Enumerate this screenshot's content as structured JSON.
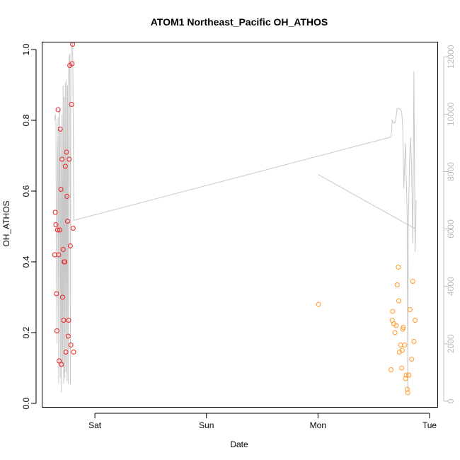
{
  "chart_data": {
    "type": "scatter",
    "title": "ATOM1 Northeast_Pacific OH_ATHOS",
    "xlabel": "Date",
    "ylabel": "OH_ATHOS",
    "x_axis": {
      "type": "time",
      "unit": "days",
      "range": [
        -0.47,
        3.07
      ],
      "ticks": [
        {
          "value": 0,
          "label": "Sat"
        },
        {
          "value": 1,
          "label": "Sun"
        },
        {
          "value": 2,
          "label": "Mon"
        },
        {
          "value": 3,
          "label": "Tue"
        }
      ]
    },
    "y_axis": {
      "range": [
        -0.01,
        1.02
      ],
      "ticks": [
        0.0,
        0.2,
        0.4,
        0.6,
        0.8,
        1.0
      ],
      "tick_labels": [
        "0.0",
        "0.2",
        "0.4",
        "0.6",
        "0.8",
        "1.0"
      ]
    },
    "y2_axis": {
      "range": [
        -200,
        12500
      ],
      "ticks": [
        0,
        2000,
        4000,
        6000,
        8000,
        10000,
        12000
      ],
      "tick_labels": [
        "0",
        "2000",
        "4000",
        "6000",
        "8000",
        "10000",
        "12000"
      ],
      "color": "#bdbdbd"
    },
    "grid": false,
    "colors": {
      "series_1": "#ee2222",
      "series_2": "#ff9922",
      "altitude": "#c8c8c8"
    },
    "series": [
      {
        "color": "#ee2222",
        "marker": "open-circle",
        "points": [
          [
            -0.36,
            0.42
          ],
          [
            -0.355,
            0.54
          ],
          [
            -0.35,
            0.505
          ],
          [
            -0.345,
            0.31
          ],
          [
            -0.34,
            0.205
          ],
          [
            -0.335,
            0.49
          ],
          [
            -0.33,
            0.83
          ],
          [
            -0.325,
            0.42
          ],
          [
            -0.32,
            0.12
          ],
          [
            -0.315,
            0.49
          ],
          [
            -0.31,
            0.775
          ],
          [
            -0.305,
            0.605
          ],
          [
            -0.3,
            0.11
          ],
          [
            -0.295,
            0.69
          ],
          [
            -0.29,
            0.3
          ],
          [
            -0.285,
            0.435
          ],
          [
            -0.28,
            0.235
          ],
          [
            -0.275,
            0.4
          ],
          [
            -0.27,
            0.4
          ],
          [
            -0.265,
            0.67
          ],
          [
            -0.26,
            0.145
          ],
          [
            -0.255,
            0.71
          ],
          [
            -0.25,
            0.585
          ],
          [
            -0.245,
            0.515
          ],
          [
            -0.24,
            0.19
          ],
          [
            -0.235,
            0.235
          ],
          [
            -0.23,
            0.69
          ],
          [
            -0.225,
            0.955
          ],
          [
            -0.22,
            0.445
          ],
          [
            -0.215,
            0.165
          ],
          [
            -0.21,
            0.845
          ],
          [
            -0.205,
            0.96
          ],
          [
            -0.2,
            1.015
          ],
          [
            -0.195,
            0.495
          ],
          [
            -0.19,
            0.145
          ]
        ]
      },
      {
        "color": "#ff9922",
        "marker": "open-circle",
        "points": [
          [
            2.005,
            0.28
          ],
          [
            2.655,
            0.095
          ],
          [
            2.665,
            0.235
          ],
          [
            2.67,
            0.26
          ],
          [
            2.68,
            0.225
          ],
          [
            2.69,
            0.2
          ],
          [
            2.7,
            0.22
          ],
          [
            2.71,
            0.335
          ],
          [
            2.72,
            0.385
          ],
          [
            2.725,
            0.29
          ],
          [
            2.73,
            0.145
          ],
          [
            2.74,
            0.165
          ],
          [
            2.75,
            0.1
          ],
          [
            2.755,
            0.15
          ],
          [
            2.76,
            0.21
          ],
          [
            2.765,
            0.215
          ],
          [
            2.775,
            0.165
          ],
          [
            2.785,
            0.07
          ],
          [
            2.79,
            0.08
          ],
          [
            2.8,
            0.04
          ],
          [
            2.805,
            0.03
          ],
          [
            2.815,
            0.08
          ],
          [
            2.825,
            0.265
          ],
          [
            2.84,
            0.125
          ],
          [
            2.85,
            0.345
          ],
          [
            2.86,
            0.175
          ],
          [
            2.87,
            0.235
          ]
        ]
      }
    ],
    "altitude_trace": {
      "axis": "y2",
      "color": "#c8c8c8",
      "points": [
        [
          -0.36,
          9800
        ],
        [
          -0.355,
          10000
        ],
        [
          -0.35,
          9850
        ],
        [
          -0.34,
          2000
        ],
        [
          -0.335,
          8000
        ],
        [
          -0.33,
          9900
        ],
        [
          -0.325,
          600
        ],
        [
          -0.32,
          8500
        ],
        [
          -0.315,
          10200
        ],
        [
          -0.31,
          800
        ],
        [
          -0.305,
          9500
        ],
        [
          -0.3,
          300
        ],
        [
          -0.295,
          10000
        ],
        [
          -0.29,
          1200
        ],
        [
          -0.285,
          11000
        ],
        [
          -0.28,
          600
        ],
        [
          -0.275,
          10600
        ],
        [
          -0.27,
          800
        ],
        [
          -0.265,
          11100
        ],
        [
          -0.26,
          1000
        ],
        [
          -0.255,
          11200
        ],
        [
          -0.25,
          700
        ],
        [
          -0.245,
          11000
        ],
        [
          -0.24,
          600
        ],
        [
          -0.235,
          11500
        ],
        [
          -0.23,
          12000
        ],
        [
          -0.225,
          12100
        ],
        [
          -0.22,
          600
        ],
        [
          -0.215,
          11800
        ],
        [
          -0.21,
          12300
        ],
        [
          -0.2,
          12500
        ],
        [
          -0.195,
          10800
        ],
        [
          -0.19,
          6300
        ],
        [
          2.65,
          9200
        ],
        [
          2.66,
          9400
        ],
        [
          2.665,
          9800
        ],
        [
          2.675,
          9700
        ],
        [
          2.69,
          9700
        ],
        [
          2.7,
          9900
        ],
        [
          2.71,
          10200
        ],
        [
          2.73,
          10200
        ],
        [
          2.75,
          10100
        ],
        [
          2.76,
          9500
        ],
        [
          2.77,
          7400
        ],
        [
          2.78,
          8600
        ],
        [
          2.785,
          9000
        ],
        [
          2.79,
          7900
        ],
        [
          2.8,
          6500
        ],
        [
          2.805,
          400
        ],
        [
          2.81,
          6200
        ],
        [
          2.82,
          8200
        ],
        [
          2.83,
          9200
        ],
        [
          2.84,
          8000
        ],
        [
          2.85,
          5500
        ],
        [
          2.86,
          11500
        ],
        [
          2.87,
          5200
        ],
        [
          2.875,
          6000
        ],
        [
          2.88,
          7000
        ],
        [
          2.875,
          6000
        ],
        [
          2.0,
          7900
        ]
      ]
    }
  }
}
